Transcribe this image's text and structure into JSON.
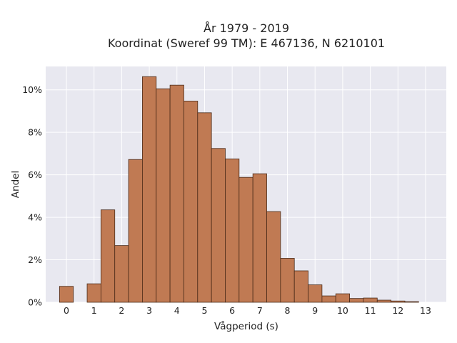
{
  "chart_data": {
    "type": "bar",
    "title_line1": "År 1979 - 2019",
    "title_line2": "Koordinat (Sweref 99 TM): E 467136, N 6210101",
    "xlabel": "Vågperiod (s)",
    "ylabel": "Andel",
    "x_ticks": [
      "0",
      "1",
      "2",
      "3",
      "4",
      "5",
      "6",
      "7",
      "8",
      "9",
      "10",
      "11",
      "12",
      "13"
    ],
    "y_ticks": [
      "0%",
      "2%",
      "4%",
      "6%",
      "8%",
      "10%"
    ],
    "xlim": [
      -0.75,
      13.75
    ],
    "ylim": [
      0,
      11.1
    ],
    "bin_width": 0.5,
    "bins": [
      {
        "x": 0.0,
        "value": 0.75
      },
      {
        "x": 0.5,
        "value": 0.0
      },
      {
        "x": 1.0,
        "value": 0.87
      },
      {
        "x": 1.5,
        "value": 4.35
      },
      {
        "x": 2.0,
        "value": 2.67
      },
      {
        "x": 2.5,
        "value": 6.72
      },
      {
        "x": 3.0,
        "value": 10.62
      },
      {
        "x": 3.5,
        "value": 10.05
      },
      {
        "x": 4.0,
        "value": 10.22
      },
      {
        "x": 4.5,
        "value": 9.47
      },
      {
        "x": 5.0,
        "value": 8.92
      },
      {
        "x": 5.5,
        "value": 7.24
      },
      {
        "x": 6.0,
        "value": 6.75
      },
      {
        "x": 6.5,
        "value": 5.88
      },
      {
        "x": 7.0,
        "value": 6.05
      },
      {
        "x": 7.5,
        "value": 4.27
      },
      {
        "x": 8.0,
        "value": 2.07
      },
      {
        "x": 8.5,
        "value": 1.48
      },
      {
        "x": 9.0,
        "value": 0.82
      },
      {
        "x": 9.5,
        "value": 0.3
      },
      {
        "x": 10.0,
        "value": 0.4
      },
      {
        "x": 10.5,
        "value": 0.18
      },
      {
        "x": 11.0,
        "value": 0.2
      },
      {
        "x": 11.5,
        "value": 0.1
      },
      {
        "x": 12.0,
        "value": 0.06
      },
      {
        "x": 12.5,
        "value": 0.03
      }
    ],
    "grid": true,
    "colors": {
      "bar_fill": "#c07a53",
      "bar_stroke": "#4a2a18",
      "plot_bg": "#e8e8f0",
      "grid": "#ffffff"
    }
  }
}
